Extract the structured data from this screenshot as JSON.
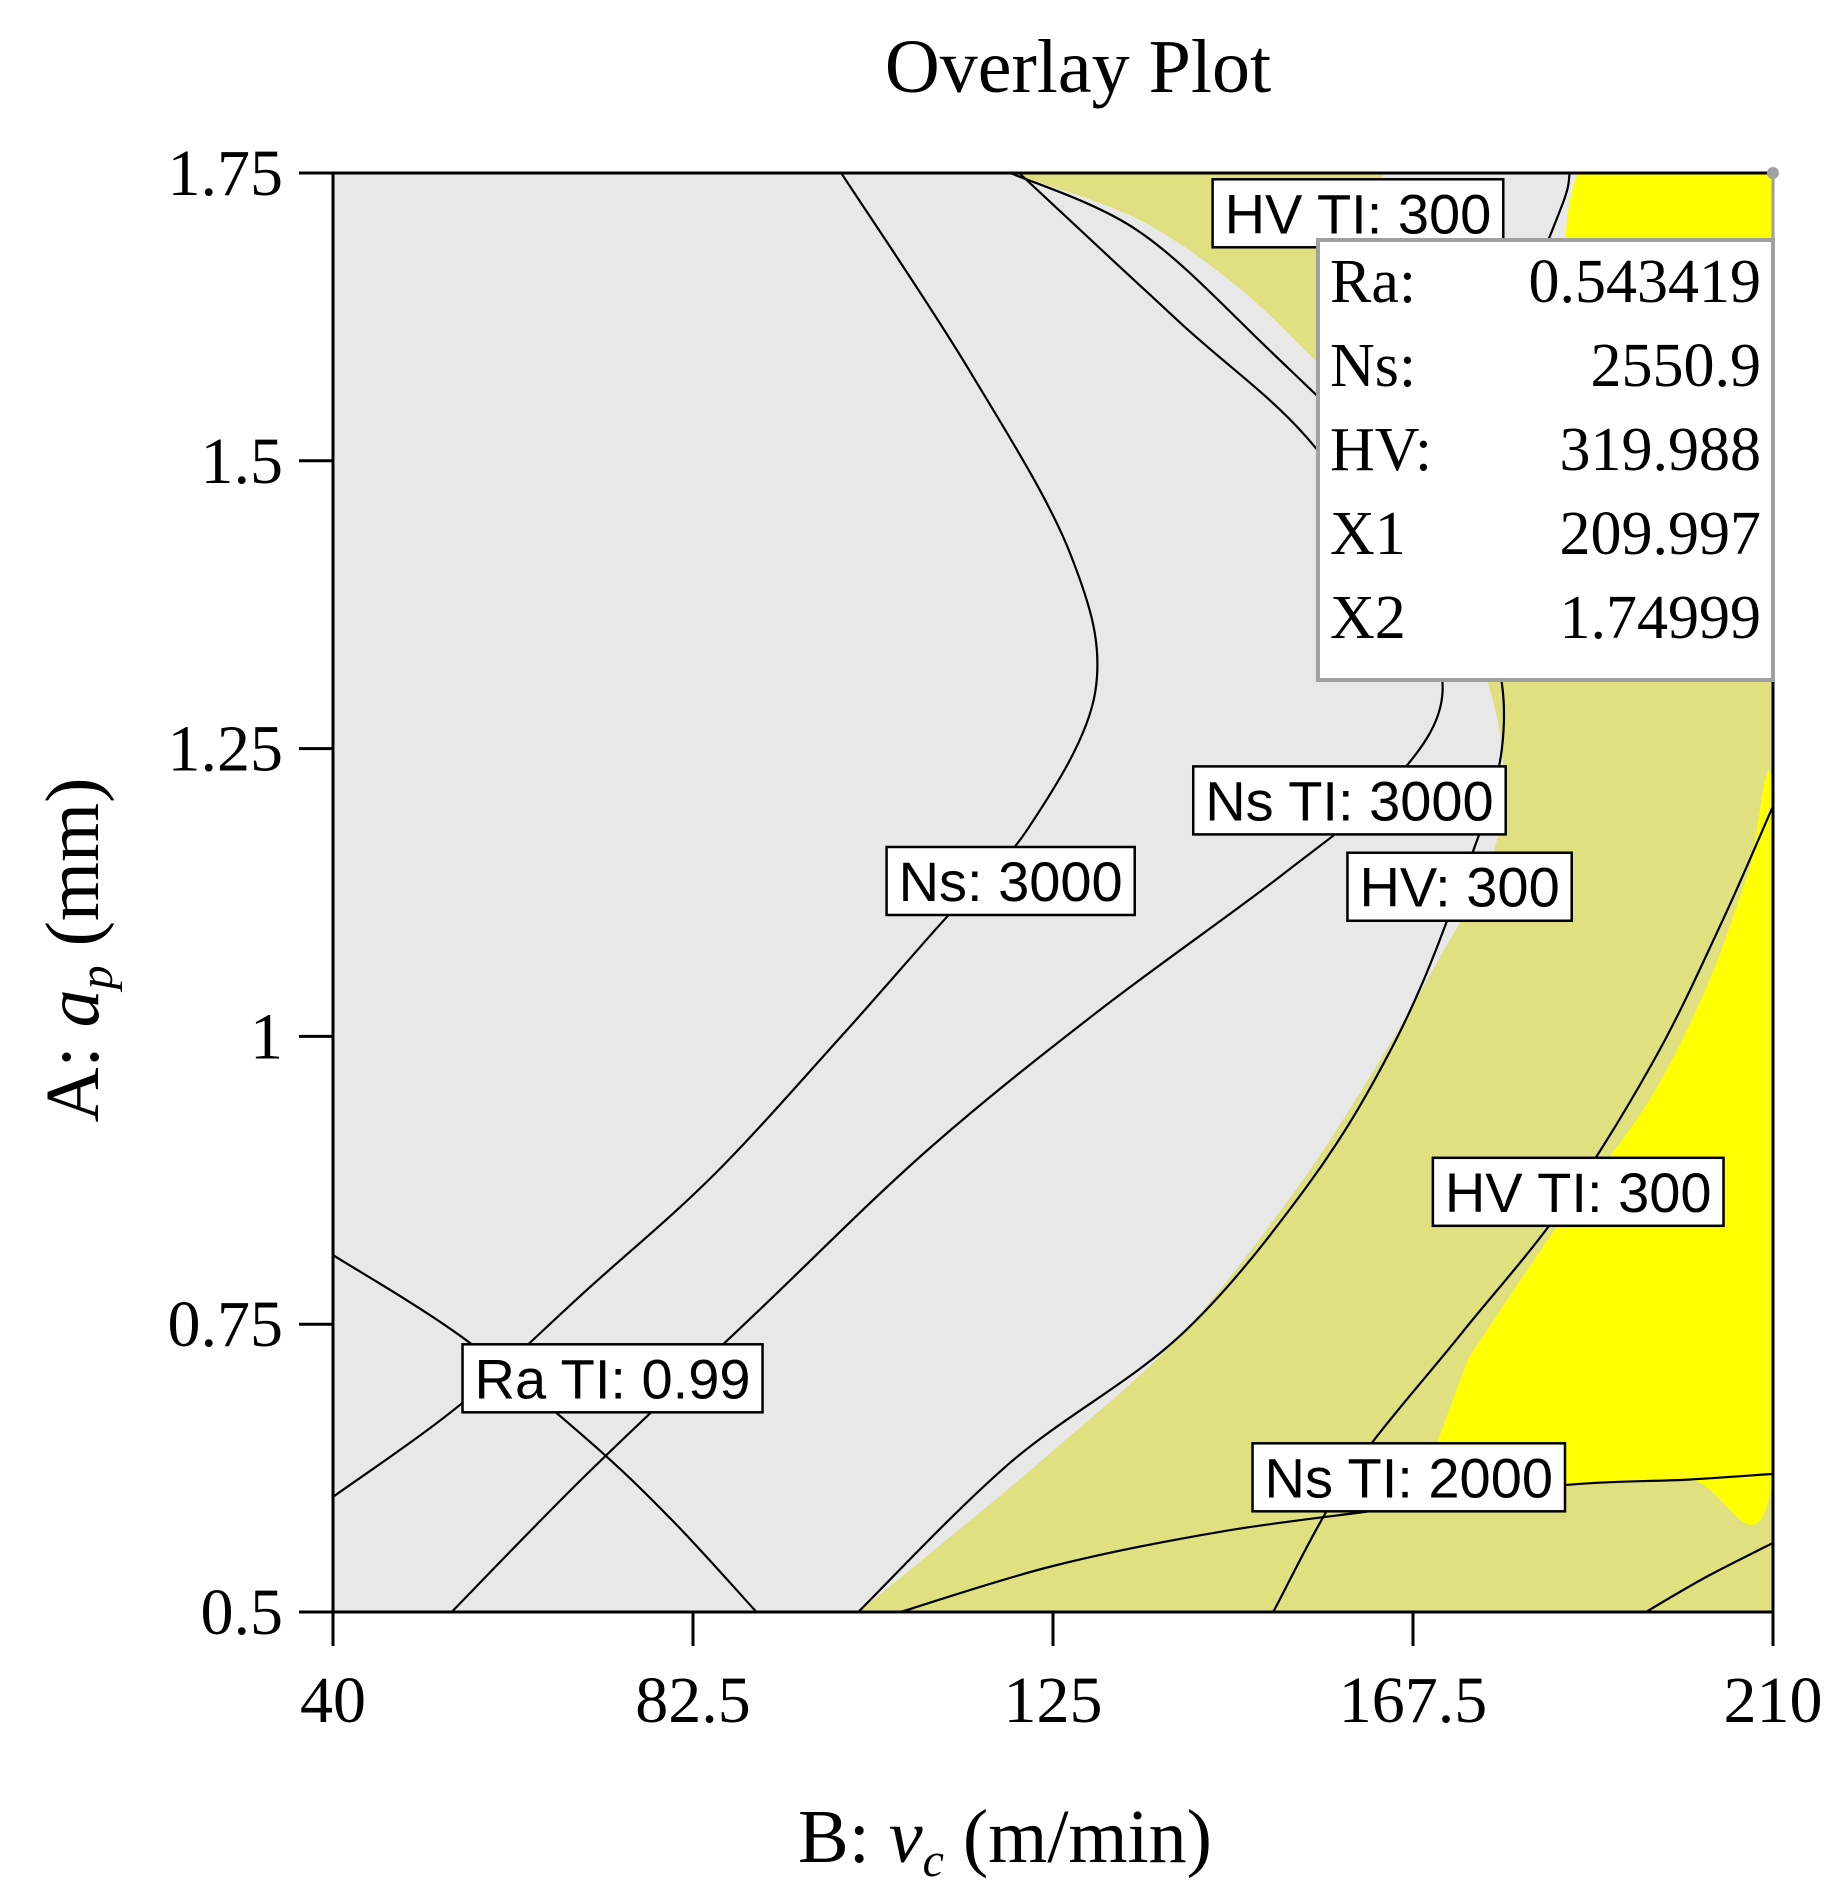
{
  "chart_data": {
    "type": "contour",
    "title": "Overlay Plot",
    "xlabel": {
      "prefix": "B: ",
      "var": "v",
      "sub": "c",
      "suffix": " (m/min)"
    },
    "ylabel": {
      "prefix": "A: ",
      "var": "a",
      "sub": "p",
      "suffix": " (mm)"
    },
    "xlim": [
      40,
      210
    ],
    "ylim": [
      0.5,
      1.75
    ],
    "x_ticks": [
      40,
      82.5,
      125,
      167.5,
      210
    ],
    "x_tick_labels": [
      "40",
      "82.5",
      "125",
      "167.5",
      "210"
    ],
    "y_ticks": [
      0.5,
      0.75,
      1,
      1.25,
      1.5,
      1.75
    ],
    "y_tick_labels": [
      "0.5",
      "0.75",
      "1",
      "1.25",
      "1.5",
      "1.75"
    ],
    "colors": {
      "infeasible": "#e8e8e8",
      "feasible": "#e0e080",
      "optimal": "#ffff00",
      "contour": "#000000"
    },
    "regions": [
      {
        "name": "feasible-region-upper",
        "fill": "feasible",
        "points": [
          [
            120,
            1.75
          ],
          [
            135,
            1.71
          ],
          [
            147,
            1.65
          ],
          [
            157,
            1.58
          ],
          [
            162,
            1.55
          ],
          [
            164,
            1.75
          ]
        ]
      },
      {
        "name": "feasible-region-right",
        "fill": "feasible",
        "points": [
          [
            102,
            0.5
          ],
          [
            112,
            0.56
          ],
          [
            125,
            0.64
          ],
          [
            140,
            0.74
          ],
          [
            153,
            0.86
          ],
          [
            162,
            0.96
          ],
          [
            170,
            1.06
          ],
          [
            177,
            1.16
          ],
          [
            178,
            1.25
          ],
          [
            175,
            1.34
          ],
          [
            172,
            1.4
          ],
          [
            210,
            1.4
          ],
          [
            210,
            0.5
          ]
        ]
      },
      {
        "name": "optimal-region-lower",
        "fill": "optimal",
        "points": [
          [
            174,
            0.72
          ],
          [
            185,
            0.84
          ],
          [
            195,
            0.94
          ],
          [
            202,
            1.04
          ],
          [
            207,
            1.14
          ],
          [
            210,
            1.2
          ],
          [
            210,
            0.62
          ],
          [
            200,
            0.615
          ],
          [
            185,
            0.61
          ],
          [
            175,
            0.6
          ],
          [
            168,
            0.6
          ]
        ]
      },
      {
        "name": "optimal-region-upper",
        "fill": "optimal",
        "points": [
          [
            187,
            1.4
          ],
          [
            187,
            1.75
          ],
          [
            210,
            1.75
          ],
          [
            210,
            1.4
          ]
        ]
      }
    ],
    "contours": [
      {
        "name": "ns-3000-contour",
        "points": [
          [
            40,
            0.6
          ],
          [
            55,
            0.68
          ],
          [
            70,
            0.78
          ],
          [
            85,
            0.88
          ],
          [
            100,
            1.0
          ],
          [
            112,
            1.1
          ],
          [
            122,
            1.18
          ],
          [
            130,
            1.3
          ],
          [
            127,
            1.42
          ],
          [
            115,
            1.58
          ],
          [
            100,
            1.75
          ]
        ]
      },
      {
        "name": "ns-tl-3000-contour",
        "points": [
          [
            54,
            0.5
          ],
          [
            70,
            0.62
          ],
          [
            90,
            0.76
          ],
          [
            110,
            0.9
          ],
          [
            130,
            1.02
          ],
          [
            152,
            1.14
          ],
          [
            165,
            1.22
          ],
          [
            171,
            1.3
          ],
          [
            166,
            1.4
          ],
          [
            155,
            1.52
          ],
          [
            140,
            1.62
          ],
          [
            121,
            1.75
          ]
        ]
      },
      {
        "name": "hv-300-contour",
        "points": [
          [
            102,
            0.5
          ],
          [
            120,
            0.63
          ],
          [
            140,
            0.74
          ],
          [
            155,
            0.87
          ],
          [
            165,
            0.99
          ],
          [
            172,
            1.11
          ],
          [
            178,
            1.25
          ],
          [
            176,
            1.36
          ],
          [
            166,
            1.48
          ],
          [
            150,
            1.6
          ],
          [
            135,
            1.7
          ],
          [
            120,
            1.75
          ]
        ]
      },
      {
        "name": "hv-tl-300-contour",
        "points": [
          [
            151,
            0.5
          ],
          [
            160,
            0.62
          ],
          [
            173,
            0.74
          ],
          [
            185,
            0.85
          ],
          [
            196,
            0.98
          ],
          [
            204,
            1.1
          ],
          [
            210,
            1.2
          ]
        ]
      },
      {
        "name": "ns-tl-2000-contour",
        "points": [
          [
            107,
            0.5
          ],
          [
            125,
            0.54
          ],
          [
            145,
            0.57
          ],
          [
            165,
            0.59
          ],
          [
            185,
            0.61
          ],
          [
            200,
            0.615
          ],
          [
            210,
            0.62
          ]
        ]
      },
      {
        "name": "ra-tl-099-contour",
        "points": [
          [
            40,
            0.81
          ],
          [
            55,
            0.74
          ],
          [
            70,
            0.65
          ],
          [
            80,
            0.58
          ],
          [
            90,
            0.5
          ]
        ]
      },
      {
        "name": "lower-right-contour",
        "points": [
          [
            195,
            0.5
          ],
          [
            202,
            0.53
          ],
          [
            210,
            0.56
          ]
        ]
      },
      {
        "name": "top-right-contour",
        "points": [
          [
            170,
            1.52
          ],
          [
            179,
            1.62
          ],
          [
            185,
            1.72
          ],
          [
            186,
            1.75
          ]
        ]
      }
    ],
    "contour_labels": [
      {
        "name": "contour-label-hv-tl-300-top",
        "text": "HV TI:  300",
        "x": 161,
        "y": 1.715
      },
      {
        "name": "contour-label-ns-3000",
        "text": "Ns: 3000",
        "x": 120,
        "y": 1.135
      },
      {
        "name": "contour-label-ns-tl-3000",
        "text": "Ns TI:  3000",
        "x": 160,
        "y": 1.205
      },
      {
        "name": "contour-label-hv-300",
        "text": "HV: 300",
        "x": 173,
        "y": 1.13
      },
      {
        "name": "contour-label-hv-tl-300",
        "text": "HV TI:  300",
        "x": 187,
        "y": 0.865
      },
      {
        "name": "contour-label-ra-tl-099",
        "text": "Ra TI: 0.99",
        "x": 73,
        "y": 0.703
      },
      {
        "name": "contour-label-ns-tl-2000",
        "text": "Ns TI: 2000",
        "x": 167,
        "y": 0.617
      }
    ],
    "optimum": {
      "x": 209.997,
      "y": 1.74999
    },
    "info_box": [
      {
        "key": "Ra:",
        "value": "0.543419"
      },
      {
        "key": "Ns:",
        "value": "2550.9"
      },
      {
        "key": "HV:",
        "value": "319.988"
      },
      {
        "key": "X1",
        "value": "209.997"
      },
      {
        "key": "X2",
        "value": "1.74999"
      }
    ]
  }
}
